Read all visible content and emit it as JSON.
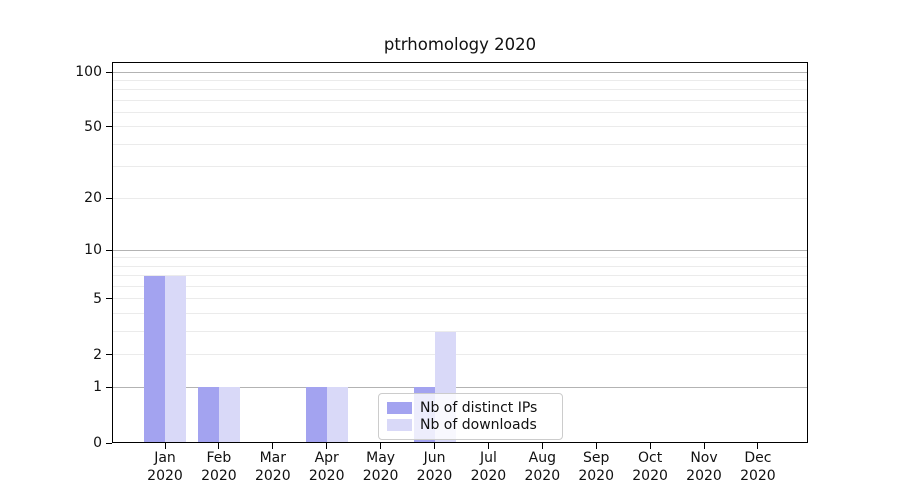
{
  "chart_data": {
    "type": "bar",
    "title": "ptrhomology 2020",
    "categories": [
      "Jan",
      "Feb",
      "Mar",
      "Apr",
      "May",
      "Jun",
      "Jul",
      "Aug",
      "Sep",
      "Oct",
      "Nov",
      "Dec"
    ],
    "x_year_label": "2020",
    "series": [
      {
        "name": "Nb of distinct IPs",
        "color": "#a3a3f0",
        "values": [
          7,
          1,
          0,
          1,
          0,
          1,
          0,
          0,
          0,
          0,
          0,
          0
        ]
      },
      {
        "name": "Nb of downloads",
        "color": "#d9d9f8",
        "values": [
          7,
          1,
          0,
          1,
          0,
          3,
          0,
          0,
          0,
          0,
          0,
          0
        ]
      }
    ],
    "y_axis": {
      "scale": "log10(1+v)",
      "tick_labels": [
        0,
        1,
        2,
        5,
        10,
        20,
        50,
        100
      ],
      "ymax_value": 113,
      "major_gridlines": [
        1,
        10,
        100
      ],
      "minor_gridlines": [
        2,
        3,
        4,
        5,
        6,
        7,
        8,
        9,
        20,
        30,
        40,
        50,
        60,
        70,
        80,
        90
      ],
      "major_grid_color": "#b3b3b3",
      "minor_grid_color": "#ebebeb"
    },
    "legend": {
      "position": "lower-center",
      "items": [
        "Nb of distinct IPs",
        "Nb of downloads"
      ]
    },
    "grid": "on",
    "xlabel": "",
    "ylabel": ""
  }
}
